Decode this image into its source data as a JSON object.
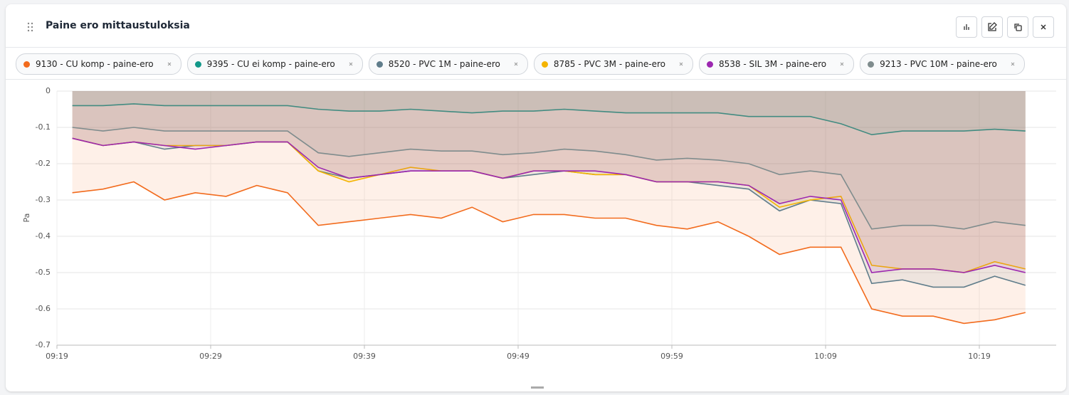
{
  "header": {
    "title": "Paine ero mittaustuloksia"
  },
  "chart_data": {
    "type": "area",
    "ylabel": "Pa",
    "x": [
      "09:20",
      "09:22",
      "09:24",
      "09:26",
      "09:28",
      "09:30",
      "09:32",
      "09:34",
      "09:36",
      "09:38",
      "09:40",
      "09:42",
      "09:44",
      "09:46",
      "09:48",
      "09:50",
      "09:52",
      "09:54",
      "09:56",
      "09:58",
      "10:00",
      "10:02",
      "10:04",
      "10:06",
      "10:08",
      "10:10",
      "10:12",
      "10:14",
      "10:16",
      "10:18",
      "10:20",
      "10:22"
    ],
    "xlim": [
      "09:19",
      "10:24"
    ],
    "xticks": [
      "09:19",
      "09:29",
      "09:39",
      "09:49",
      "09:59",
      "10:09",
      "10:19"
    ],
    "ylim": [
      -0.7,
      0
    ],
    "yticks": [
      0,
      -0.1,
      -0.2,
      -0.3,
      -0.4,
      -0.5,
      -0.6,
      -0.7
    ],
    "grid": true,
    "series": [
      {
        "name": "9130 - CU komp - paine-ero",
        "color": "#f26b1d",
        "values": [
          -0.28,
          -0.27,
          -0.25,
          -0.3,
          -0.28,
          -0.29,
          -0.26,
          -0.28,
          -0.37,
          -0.36,
          -0.35,
          -0.34,
          -0.35,
          -0.32,
          -0.36,
          -0.34,
          -0.34,
          -0.35,
          -0.35,
          -0.37,
          -0.38,
          -0.36,
          -0.4,
          -0.45,
          -0.43,
          -0.43,
          -0.6,
          -0.62,
          -0.62,
          -0.64,
          -0.63,
          -0.61
        ]
      },
      {
        "name": "9395 - CU ei komp - paine-ero",
        "color": "#13998a",
        "values": [
          -0.04,
          -0.04,
          -0.035,
          -0.04,
          -0.04,
          -0.04,
          -0.04,
          -0.04,
          -0.05,
          -0.055,
          -0.055,
          -0.05,
          -0.055,
          -0.06,
          -0.055,
          -0.055,
          -0.05,
          -0.055,
          -0.06,
          -0.06,
          -0.06,
          -0.06,
          -0.07,
          -0.07,
          -0.07,
          -0.09,
          -0.12,
          -0.11,
          -0.11,
          -0.11,
          -0.105,
          -0.11
        ]
      },
      {
        "name": "8520 - PVC 1M - paine-ero",
        "color": "#607d8b",
        "values": [
          -0.13,
          -0.15,
          -0.14,
          -0.16,
          -0.15,
          -0.15,
          -0.14,
          -0.14,
          -0.22,
          -0.24,
          -0.23,
          -0.22,
          -0.22,
          -0.22,
          -0.24,
          -0.23,
          -0.22,
          -0.23,
          -0.23,
          -0.25,
          -0.25,
          -0.26,
          -0.27,
          -0.33,
          -0.3,
          -0.31,
          -0.53,
          -0.52,
          -0.54,
          -0.54,
          -0.51,
          -0.535
        ]
      },
      {
        "name": "8785 - PVC 3M - paine-ero",
        "color": "#f4b400",
        "values": [
          -0.13,
          -0.15,
          -0.14,
          -0.15,
          -0.15,
          -0.15,
          -0.14,
          -0.14,
          -0.22,
          -0.25,
          -0.23,
          -0.21,
          -0.22,
          -0.22,
          -0.24,
          -0.22,
          -0.22,
          -0.23,
          -0.23,
          -0.25,
          -0.25,
          -0.25,
          -0.26,
          -0.32,
          -0.3,
          -0.29,
          -0.48,
          -0.49,
          -0.49,
          -0.5,
          -0.47,
          -0.49
        ]
      },
      {
        "name": "8538 - SIL 3M - paine-ero",
        "color": "#9c27b0",
        "values": [
          -0.13,
          -0.15,
          -0.14,
          -0.15,
          -0.16,
          -0.15,
          -0.14,
          -0.14,
          -0.21,
          -0.24,
          -0.23,
          -0.22,
          -0.22,
          -0.22,
          -0.24,
          -0.22,
          -0.22,
          -0.22,
          -0.23,
          -0.25,
          -0.25,
          -0.25,
          -0.26,
          -0.31,
          -0.29,
          -0.3,
          -0.5,
          -0.49,
          -0.49,
          -0.5,
          -0.48,
          -0.5
        ]
      },
      {
        "name": "9213 - PVC 10M - paine-ero",
        "color": "#7f8c8d",
        "values": [
          -0.1,
          -0.11,
          -0.1,
          -0.11,
          -0.11,
          -0.11,
          -0.11,
          -0.11,
          -0.17,
          -0.18,
          -0.17,
          -0.16,
          -0.165,
          -0.165,
          -0.175,
          -0.17,
          -0.16,
          -0.165,
          -0.175,
          -0.19,
          -0.185,
          -0.19,
          -0.2,
          -0.23,
          -0.22,
          -0.23,
          -0.38,
          -0.37,
          -0.37,
          -0.38,
          -0.36,
          -0.37
        ]
      }
    ]
  }
}
